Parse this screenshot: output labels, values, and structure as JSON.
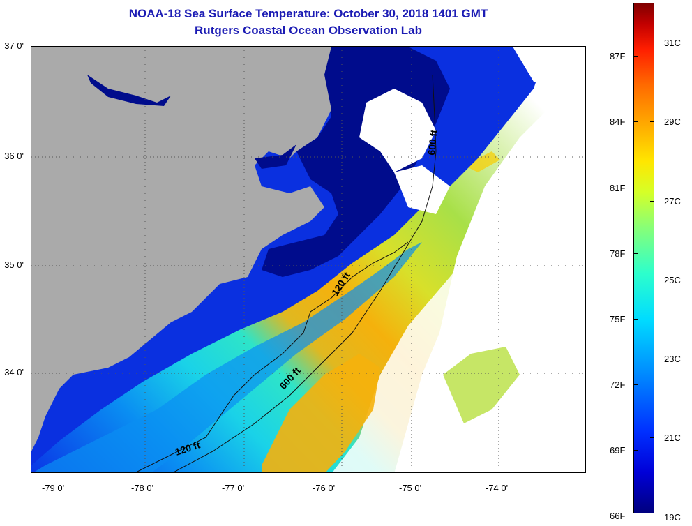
{
  "title": {
    "line1": "NOAA-18 Sea Surface Temperature:  October 30, 2018 1401 GMT",
    "line2": "Rutgers Coastal Ocean Observation Lab"
  },
  "map": {
    "lat_labels": [
      "37 0'",
      "36 0'",
      "35 0'",
      "34 0'"
    ],
    "lon_labels": [
      "-79 0'",
      "-78 0'",
      "-77 0'",
      "-76 0'",
      "-75 0'",
      "-74 0'"
    ],
    "contours": [
      {
        "label": "600 ft"
      },
      {
        "label": "120 ft"
      },
      {
        "label": "600 ft"
      },
      {
        "label": "120 ft"
      }
    ],
    "colors": {
      "land": "#aaaaaa",
      "cloud": "#ffffff",
      "sound": "#000c8c",
      "nearshore": "#0a2ee0",
      "shelf": "#0aa8f0",
      "midshelf": "#28e0e0",
      "gulfstream": "#f5b10c",
      "warm": "#d4e02a"
    }
  },
  "colorbar": {
    "fahrenheit_labels": [
      "87F",
      "84F",
      "81F",
      "78F",
      "75F",
      "72F",
      "69F",
      "66F"
    ],
    "celsius_labels": [
      "31C",
      "29C",
      "27C",
      "25C",
      "23C",
      "21C",
      "19C"
    ],
    "min_color": "#00007f",
    "max_color": "#800000"
  }
}
